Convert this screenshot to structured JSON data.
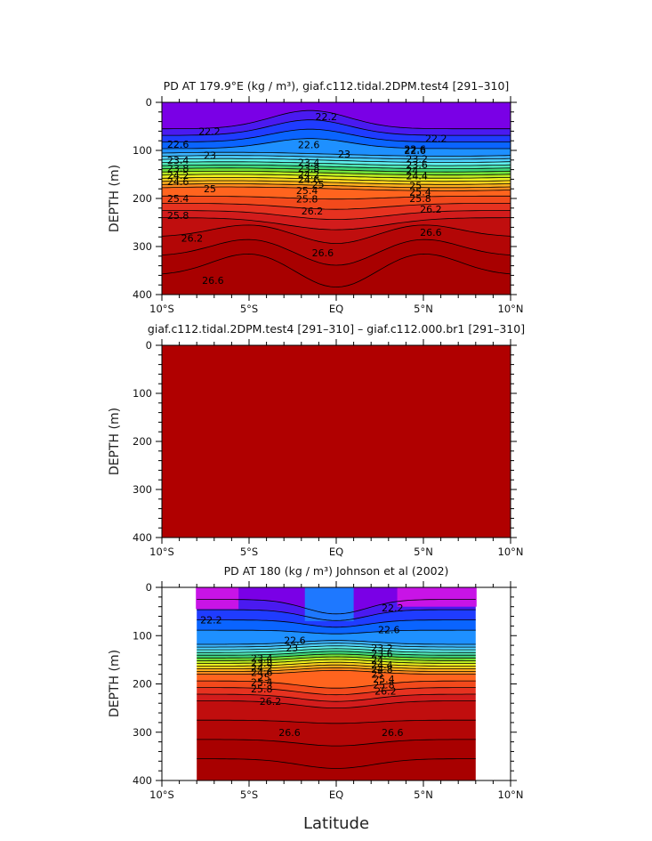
{
  "figure": {
    "xlabel": "Latitude"
  },
  "chart_data": [
    {
      "type": "heatmap",
      "panel": "top",
      "title": "PD AT 179.9°E (kg / m³), giaf.c112.tidal.2DPM.test4 [291–310]",
      "xlabel": "",
      "ylabel": "DEPTH (m)",
      "xlim": [
        -10,
        10
      ],
      "ylim": [
        400,
        0
      ],
      "xticks": [
        "10°S",
        "5°S",
        "EQ",
        "5°N",
        "10°N"
      ],
      "yticks": [
        "0",
        "100",
        "200",
        "300",
        "400"
      ],
      "contour_levels": [
        22.2,
        22.4,
        22.6,
        22.8,
        23.0,
        23.2,
        23.4,
        23.6,
        23.8,
        24.0,
        24.2,
        24.4,
        24.6,
        24.8,
        25.0,
        25.2,
        25.4,
        25.6,
        25.8,
        26.0,
        26.2,
        26.4,
        26.6
      ],
      "contour_labels": [
        {
          "text": "22.2",
          "lat": -7.9,
          "depth": 60
        },
        {
          "text": "22.2",
          "lat": -1.2,
          "depth": 30
        },
        {
          "text": "22.2",
          "lat": 5.1,
          "depth": 75
        },
        {
          "text": "22.6",
          "lat": -9.7,
          "depth": 87
        },
        {
          "text": "22.6",
          "lat": -2.2,
          "depth": 88
        },
        {
          "text": "22.6",
          "lat": 3.9,
          "depth": 97
        },
        {
          "text": "23",
          "lat": -7.6,
          "depth": 110
        },
        {
          "text": "23",
          "lat": 0.1,
          "depth": 107
        },
        {
          "text": "23.4",
          "lat": -9.7,
          "depth": 120
        },
        {
          "text": "23.8",
          "lat": -9.7,
          "depth": 137
        },
        {
          "text": "24.2",
          "lat": -9.7,
          "depth": 152
        },
        {
          "text": "24.6",
          "lat": -9.7,
          "depth": 165
        },
        {
          "text": "25",
          "lat": -7.6,
          "depth": 180
        },
        {
          "text": "23.4",
          "lat": -2.2,
          "depth": 125
        },
        {
          "text": "23.8",
          "lat": -2.2,
          "depth": 137
        },
        {
          "text": "24.2",
          "lat": -2.2,
          "depth": 150
        },
        {
          "text": "24.6",
          "lat": -2.2,
          "depth": 160
        },
        {
          "text": "25",
          "lat": -1.4,
          "depth": 170
        },
        {
          "text": "25.4",
          "lat": -2.3,
          "depth": 183
        },
        {
          "text": "25.8",
          "lat": -2.3,
          "depth": 201
        },
        {
          "text": "26.2",
          "lat": -2.0,
          "depth": 226
        },
        {
          "text": "25.4",
          "lat": -9.7,
          "depth": 200
        },
        {
          "text": "25.8",
          "lat": -9.7,
          "depth": 235
        },
        {
          "text": "26.2",
          "lat": -8.9,
          "depth": 282
        },
        {
          "text": "26.6",
          "lat": -7.7,
          "depth": 370
        },
        {
          "text": "26.6",
          "lat": -1.4,
          "depth": 313
        },
        {
          "text": "22.6",
          "lat": 3.9,
          "depth": 100
        },
        {
          "text": "23.2",
          "lat": 4.0,
          "depth": 118
        },
        {
          "text": "23.6",
          "lat": 4.0,
          "depth": 130
        },
        {
          "text": "24",
          "lat": 4.0,
          "depth": 142
        },
        {
          "text": "24.4",
          "lat": 4.0,
          "depth": 153
        },
        {
          "text": "25",
          "lat": 4.2,
          "depth": 173
        },
        {
          "text": "25.4",
          "lat": 4.2,
          "depth": 186
        },
        {
          "text": "25.8",
          "lat": 4.2,
          "depth": 200
        },
        {
          "text": "26.2",
          "lat": 4.8,
          "depth": 222
        },
        {
          "text": "26.6",
          "lat": 4.8,
          "depth": 270
        }
      ]
    },
    {
      "type": "heatmap",
      "panel": "middle",
      "title": "giaf.c112.tidal.2DPM.test4 [291–310] – giaf.c112.000.br1 [291–310]",
      "xlabel": "",
      "ylabel": "DEPTH (m)",
      "xlim": [
        -10,
        10
      ],
      "ylim": [
        400,
        0
      ],
      "xticks": [
        "10°S",
        "5°S",
        "EQ",
        "5°N",
        "10°N"
      ],
      "yticks": [
        "0",
        "100",
        "200",
        "300",
        "400"
      ],
      "fill_color": "#b00000"
    },
    {
      "type": "heatmap",
      "panel": "bottom",
      "title": "PD AT 180 (kg / m³) Johnson et al (2002)",
      "xlabel": "Latitude",
      "ylabel": "DEPTH (m)",
      "xlim": [
        -10,
        10
      ],
      "ylim": [
        400,
        0
      ],
      "data_xlim": [
        -8,
        8
      ],
      "xticks": [
        "10°S",
        "5°S",
        "EQ",
        "5°N",
        "10°N"
      ],
      "yticks": [
        "0",
        "100",
        "200",
        "300",
        "400"
      ],
      "contour_labels": [
        {
          "text": "22.2",
          "lat": -7.8,
          "depth": 67
        },
        {
          "text": "22.6",
          "lat": -3.0,
          "depth": 110
        },
        {
          "text": "23",
          "lat": -2.9,
          "depth": 125
        },
        {
          "text": "22.2",
          "lat": 2.6,
          "depth": 42
        },
        {
          "text": "22.6",
          "lat": 2.4,
          "depth": 88
        },
        {
          "text": "23.4",
          "lat": -4.9,
          "depth": 147
        },
        {
          "text": "23.8",
          "lat": -4.9,
          "depth": 157
        },
        {
          "text": "24.2",
          "lat": -4.9,
          "depth": 167
        },
        {
          "text": "24.6",
          "lat": -4.9,
          "depth": 176
        },
        {
          "text": "25",
          "lat": -4.5,
          "depth": 186
        },
        {
          "text": "25.4",
          "lat": -4.9,
          "depth": 196
        },
        {
          "text": "25.8",
          "lat": -4.9,
          "depth": 210
        },
        {
          "text": "26.2",
          "lat": -4.4,
          "depth": 236
        },
        {
          "text": "26.6",
          "lat": -3.3,
          "depth": 300
        },
        {
          "text": "23.2",
          "lat": 2.0,
          "depth": 125
        },
        {
          "text": "23.6",
          "lat": 2.0,
          "depth": 137
        },
        {
          "text": "24",
          "lat": 2.0,
          "depth": 150
        },
        {
          "text": "24.4",
          "lat": 2.0,
          "depth": 160
        },
        {
          "text": "24.8",
          "lat": 2.0,
          "depth": 170
        },
        {
          "text": "25",
          "lat": 2.0,
          "depth": 180
        },
        {
          "text": "25.4",
          "lat": 2.1,
          "depth": 190
        },
        {
          "text": "25.8",
          "lat": 2.1,
          "depth": 202
        },
        {
          "text": "26.2",
          "lat": 2.2,
          "depth": 215
        },
        {
          "text": "26.6",
          "lat": 2.6,
          "depth": 300
        }
      ]
    }
  ]
}
